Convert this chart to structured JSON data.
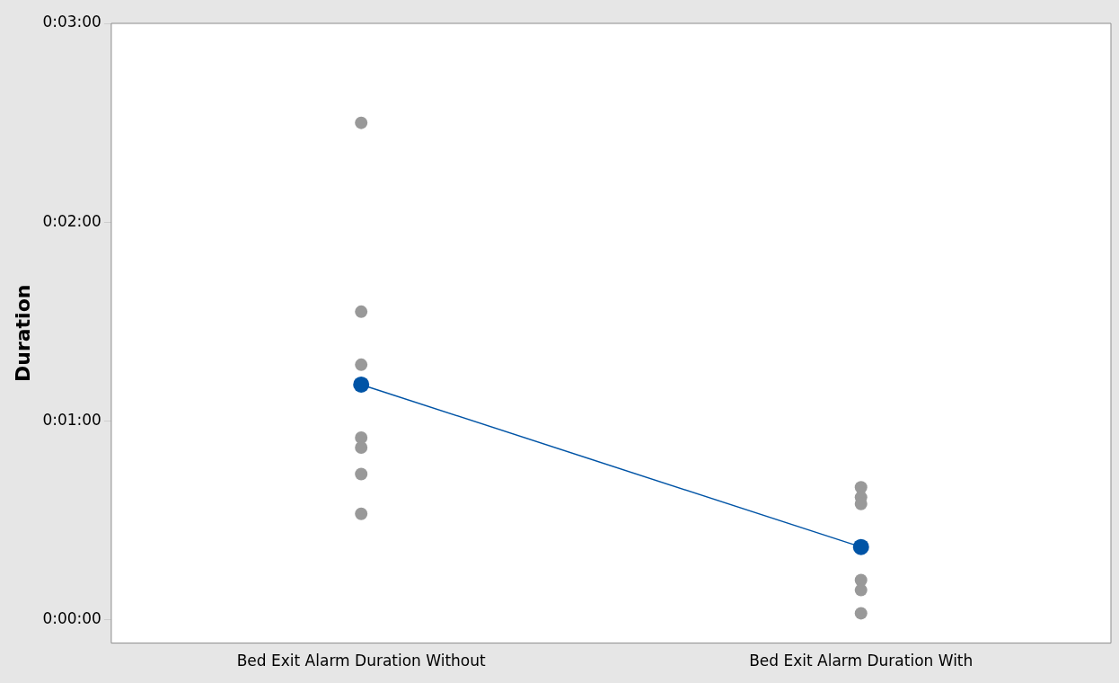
{
  "chart_data": {
    "type": "line",
    "ylabel": "Duration",
    "categories": [
      "Bed Exit Alarm Duration Without",
      "Bed Exit Alarm Duration With"
    ],
    "series": [
      {
        "type": "scatter",
        "color": "#999999",
        "x": [
          "Bed Exit Alarm Duration Without",
          "Bed Exit Alarm Duration Without",
          "Bed Exit Alarm Duration Without",
          "Bed Exit Alarm Duration Without",
          "Bed Exit Alarm Duration Without",
          "Bed Exit Alarm Duration Without",
          "Bed Exit Alarm Duration Without",
          "Bed Exit Alarm Duration With",
          "Bed Exit Alarm Duration With",
          "Bed Exit Alarm Duration With",
          "Bed Exit Alarm Duration With",
          "Bed Exit Alarm Duration With",
          "Bed Exit Alarm Duration With"
        ],
        "values": [
          150,
          93,
          77,
          55,
          52,
          44,
          32,
          40,
          37,
          35,
          12,
          9,
          2
        ]
      },
      {
        "color": "#0054a6",
        "values": [
          71,
          22
        ]
      }
    ],
    "ylim": [
      -7,
      180
    ],
    "yticks": [
      {
        "value": 0,
        "label": "0:00:00"
      },
      {
        "value": 60,
        "label": "0:01:00"
      },
      {
        "value": 120,
        "label": "0:02:00"
      },
      {
        "value": 180,
        "label": "0:03:00"
      }
    ],
    "grid": false,
    "legend": false,
    "marker": "circle",
    "line_style": "solid"
  }
}
